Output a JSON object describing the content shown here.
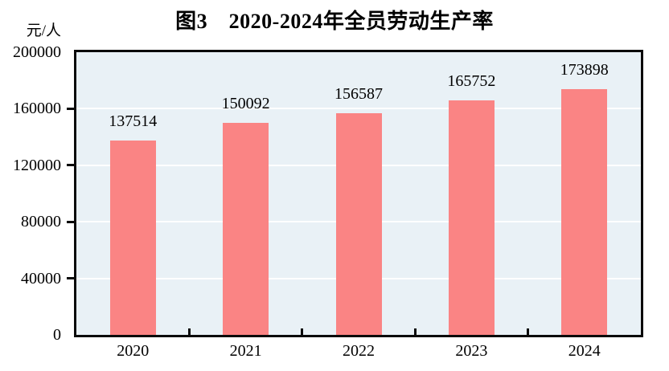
{
  "figure": {
    "title": "图3　2020-2024年全员劳动生产率",
    "y_axis_unit": "元/人"
  },
  "chart_data": {
    "type": "bar",
    "title": "图3　2020-2024年全员劳动生产率",
    "xlabel": "",
    "ylabel": "元/人",
    "categories": [
      "2020",
      "2021",
      "2022",
      "2023",
      "2024"
    ],
    "values": [
      137514,
      150092,
      156587,
      165752,
      173898
    ],
    "data_labels": [
      "137514",
      "150092",
      "156587",
      "165752",
      "173898"
    ],
    "ylim": [
      0,
      200000
    ],
    "y_ticks": [
      0,
      40000,
      80000,
      120000,
      160000,
      200000
    ],
    "grid": "horizontal-white-lines-at-major-ticks",
    "legend": "none",
    "colors": {
      "bar": "#fa8484",
      "plot_background": "#e9f1f6",
      "gridline": "#ffffff",
      "axis": "#0a0a0a",
      "text": "#000000"
    }
  }
}
